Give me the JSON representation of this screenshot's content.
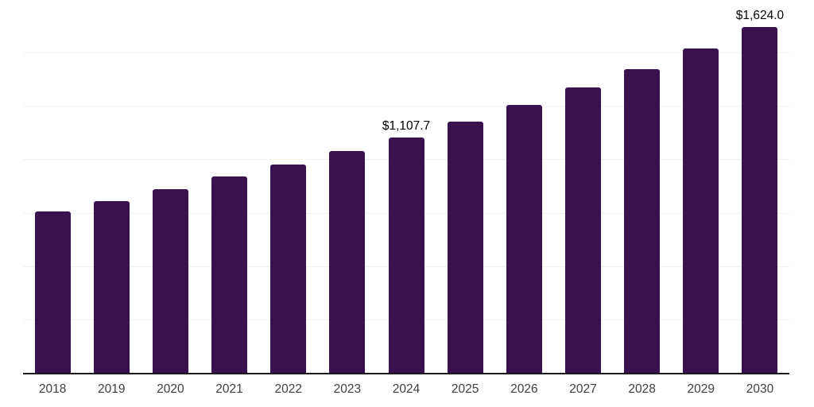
{
  "chart_data": {
    "type": "bar",
    "title": "",
    "xlabel": "",
    "ylabel": "",
    "categories": [
      "2018",
      "2019",
      "2020",
      "2021",
      "2022",
      "2023",
      "2024",
      "2025",
      "2026",
      "2027",
      "2028",
      "2029",
      "2030"
    ],
    "values": [
      760.0,
      809.0,
      863.0,
      922.0,
      978.0,
      1041.0,
      1107.7,
      1181.0,
      1257.0,
      1341.0,
      1427.0,
      1524.0,
      1624.0
    ],
    "value_labels": {
      "2024": "$1,107.7",
      "2030": "$1,624.0"
    },
    "ylim": [
      0,
      1750
    ],
    "grid_step": 250,
    "grid_on": true,
    "legend_position": "none",
    "y_tick_labels_visible": false,
    "colors": {
      "bar": "#38114F",
      "gridline": "#f2f2f2",
      "axis_line": "#1a1a1a",
      "tick_label": "#404040",
      "value_label": "#000000",
      "background": "#ffffff"
    }
  }
}
